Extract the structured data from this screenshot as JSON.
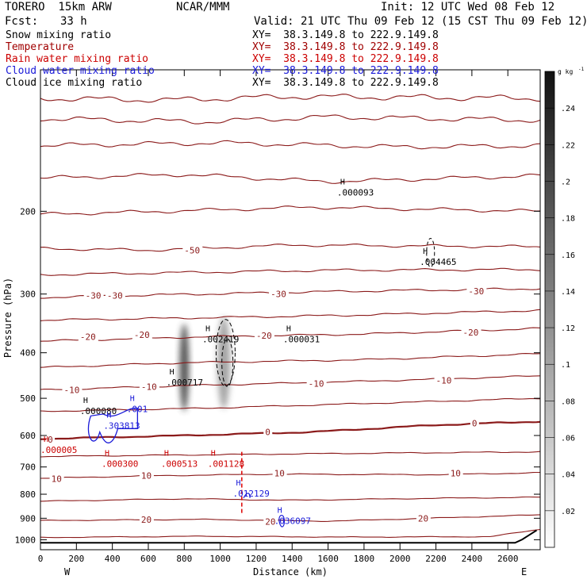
{
  "header": {
    "model": "TORERO  15km ARW",
    "org": "NCAR/MMM",
    "init": "Init: 12 UTC Wed 08 Feb 12",
    "fcst_label": "Fcst:",
    "fcst_value": "33 h",
    "valid": "Valid: 21 UTC Thu 09 Feb 12 (15 CST Thu 09 Feb 12)"
  },
  "legend": [
    {
      "name": "Snow mixing ratio",
      "xy": "XY=  38.3.149.8 to 222.9.149.8",
      "color": "#000000"
    },
    {
      "name": "Temperature",
      "xy": "XY=  38.3.149.8 to 222.9.149.8",
      "color": "#a00000"
    },
    {
      "name": "Rain water mixing ratio",
      "xy": "XY=  38.3.149.8 to 222.9.149.8",
      "color": "#cc0000"
    },
    {
      "name": "Cloud water mixing ratio",
      "xy": "XY=  38.3.149.8 to 222.9.149.8",
      "color": "#1a1ad8"
    },
    {
      "name": "Cloud ice mixing ratio",
      "xy": "XY=  38.3.149.8 to 222.9.149.8",
      "color": "#000000"
    }
  ],
  "chart_data": {
    "type": "heatmap",
    "title": "",
    "xlabel": "Distance (km)",
    "ylabel": "Pressure (hPa)",
    "xlim": [
      0,
      2780
    ],
    "ylim": [
      1050,
      100
    ],
    "y_scale": "log",
    "x_ticks": [
      0,
      200,
      400,
      600,
      800,
      1000,
      1200,
      1400,
      1600,
      1800,
      2000,
      2200,
      2400,
      2600
    ],
    "y_ticks": [
      200,
      300,
      400,
      500,
      600,
      700,
      800,
      900,
      1000
    ],
    "x_end_labels": {
      "left": "W",
      "right": "E"
    },
    "colorbar": {
      "unit": "g kg",
      "unit_sup": "-1",
      "ticks": [
        ".24",
        ".22",
        ".2",
        ".18",
        ".16",
        ".14",
        ".12",
        ".1",
        ".08",
        ".06",
        ".04",
        ".02"
      ],
      "range": [
        0,
        0.26
      ]
    },
    "temperature_contours": [
      {
        "label": "-50",
        "level": -50,
        "p": 240
      },
      {
        "label": "-30",
        "level": -30,
        "p": 300
      },
      {
        "label": "-20",
        "level": -20,
        "p": 370
      },
      {
        "label": "-10",
        "level": -10,
        "p": 470
      },
      {
        "label": "0",
        "level": 0,
        "p": 590
      },
      {
        "label": "10",
        "level": 10,
        "p": 735
      },
      {
        "label": "20",
        "level": 20,
        "p": 905
      }
    ],
    "temperature_labels": [
      {
        "text": "-50",
        "x": 800,
        "p": 242
      },
      {
        "text": "-30",
        "x": 250,
        "p": 302
      },
      {
        "text": "-30",
        "x": 370,
        "p": 302
      },
      {
        "text": "-30",
        "x": 1280,
        "p": 300
      },
      {
        "text": "-30",
        "x": 2380,
        "p": 296
      },
      {
        "text": "-20",
        "x": 220,
        "p": 370
      },
      {
        "text": "-20",
        "x": 520,
        "p": 366
      },
      {
        "text": "-20",
        "x": 1200,
        "p": 368
      },
      {
        "text": "-20",
        "x": 2350,
        "p": 362
      },
      {
        "text": "-10",
        "x": 130,
        "p": 480
      },
      {
        "text": "-10",
        "x": 560,
        "p": 472
      },
      {
        "text": "-10",
        "x": 1490,
        "p": 465
      },
      {
        "text": "-10",
        "x": 2200,
        "p": 458
      },
      {
        "text": "0",
        "x": 40,
        "p": 612
      },
      {
        "text": "0",
        "x": 1250,
        "p": 590
      },
      {
        "text": "0",
        "x": 2400,
        "p": 565
      },
      {
        "text": "10",
        "x": 60,
        "p": 742
      },
      {
        "text": "10",
        "x": 560,
        "p": 730
      },
      {
        "text": "10",
        "x": 1300,
        "p": 722
      },
      {
        "text": "10",
        "x": 2280,
        "p": 722
      },
      {
        "text": "20",
        "x": 560,
        "p": 905
      },
      {
        "text": "20",
        "x": 1250,
        "p": 915
      },
      {
        "text": "20",
        "x": 2100,
        "p": 900
      }
    ],
    "snow_maxima": [
      {
        "text": ".000093",
        "x": 1650,
        "p": 185
      },
      {
        "text": ".004465",
        "x": 2110,
        "p": 260
      },
      {
        "text": ".002419",
        "x": 900,
        "p": 380
      },
      {
        "text": ".000031",
        "x": 1350,
        "p": 380
      },
      {
        "text": ".000717",
        "x": 700,
        "p": 470
      },
      {
        "text": ".000080",
        "x": 220,
        "p": 540
      }
    ],
    "rain_maxima": [
      {
        "text": ".000005",
        "x": 0,
        "p": 653
      },
      {
        "text": ".000300",
        "x": 340,
        "p": 700
      },
      {
        "text": ".000513",
        "x": 670,
        "p": 700
      },
      {
        "text": ".001128",
        "x": 930,
        "p": 700
      }
    ],
    "cloud_water_maxima": [
      {
        "text": ".001",
        "x": 480,
        "p": 535
      },
      {
        "text": ".303813",
        "x": 350,
        "p": 580
      },
      {
        "text": ".012129",
        "x": 1070,
        "p": 810
      },
      {
        "text": ".036097",
        "x": 1300,
        "p": 925
      }
    ]
  }
}
